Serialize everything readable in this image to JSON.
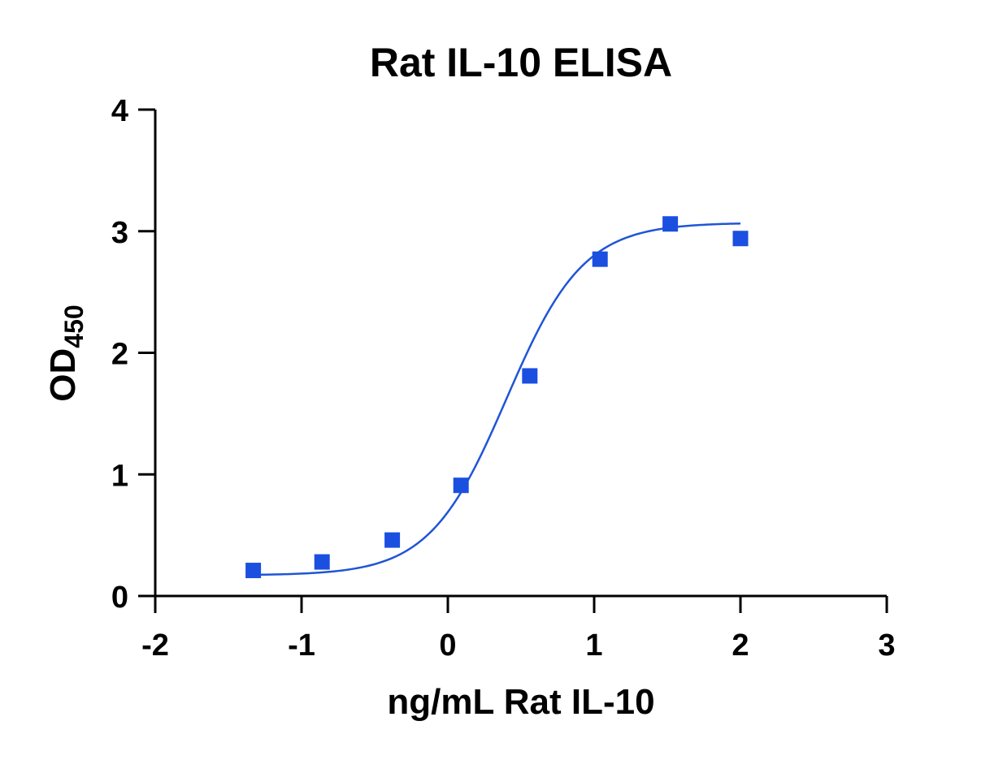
{
  "chart_data": {
    "type": "scatter",
    "title": "Rat IL-10  ELISA",
    "xlabel": "ng/mL  Rat IL-10",
    "ylabel_main": "OD",
    "ylabel_subscript": "450",
    "xlim": [
      -2,
      3
    ],
    "ylim": [
      0,
      4
    ],
    "xticks": [
      -2,
      -1,
      0,
      1,
      2,
      3
    ],
    "yticks": [
      0,
      1,
      2,
      3,
      4
    ],
    "grid": false,
    "series": [
      {
        "marker": "square",
        "color": "#1a4fe0",
        "x": [
          -1.33,
          -0.86,
          -0.38,
          0.09,
          0.56,
          1.04,
          1.52,
          2.0
        ],
        "y": [
          0.21,
          0.28,
          0.46,
          0.91,
          1.81,
          2.77,
          3.06,
          2.94
        ]
      }
    ],
    "fit_curve": {
      "type": "4PL",
      "color": "#1f55d6",
      "x_range": [
        -1.33,
        2.0
      ],
      "bottom": 0.17,
      "top": 3.07,
      "log_ec50": 0.4,
      "hill": 1.65
    }
  }
}
